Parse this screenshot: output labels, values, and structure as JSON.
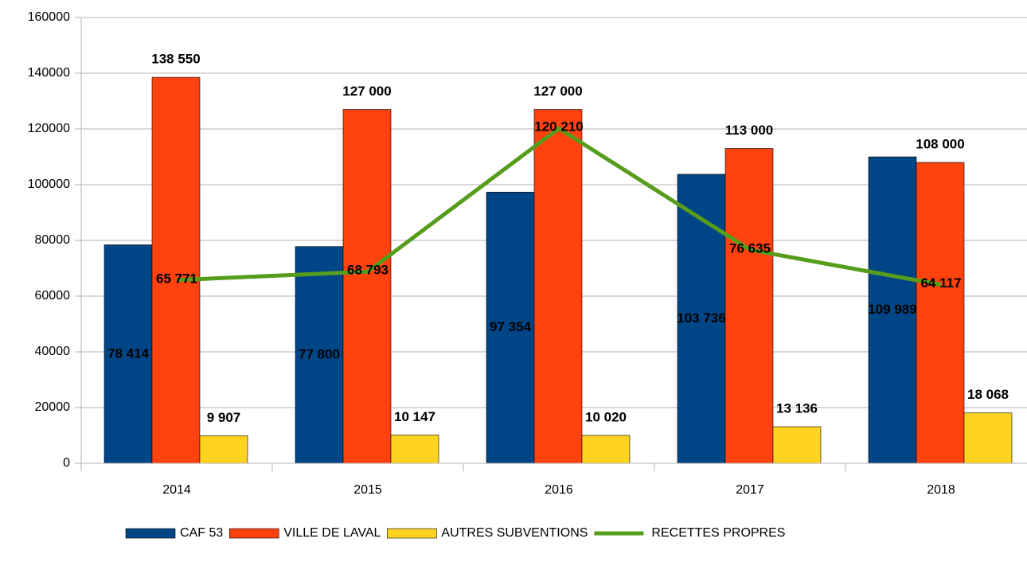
{
  "chart_data": {
    "type": "bar",
    "categories": [
      "2014",
      "2015",
      "2016",
      "2017",
      "2018"
    ],
    "ylim": [
      0,
      160000
    ],
    "yticks": [
      0,
      20000,
      40000,
      60000,
      80000,
      100000,
      120000,
      140000,
      160000
    ],
    "grid": true,
    "legend": "bottom",
    "series": [
      {
        "name": "CAF 53",
        "color": "#004586",
        "type": "bar",
        "values": [
          78414,
          77800,
          97354,
          103736,
          109989
        ],
        "value_labels": [
          "78 414",
          "77 800",
          "97 354",
          "103 736",
          "109 989"
        ]
      },
      {
        "name": "VILLE DE LAVAL",
        "color": "#ff420e",
        "type": "bar",
        "values": [
          138550,
          127000,
          127000,
          113000,
          108000
        ],
        "value_labels": [
          "138 550",
          "127 000",
          "127 000",
          "113 000",
          "108 000"
        ]
      },
      {
        "name": "AUTRES SUBVENTIONS",
        "color": "#ffd320",
        "type": "bar",
        "values": [
          9907,
          10147,
          10020,
          13136,
          18068
        ],
        "value_labels": [
          "9 907",
          "10 147",
          "10 020",
          "13 136",
          "18 068"
        ]
      },
      {
        "name": "RECETTES PROPRES",
        "color": "#579d1c",
        "type": "line",
        "values": [
          65771,
          68793,
          120210,
          76635,
          64117
        ],
        "value_labels": [
          "65 771",
          "68 793",
          "120 210",
          "76 635",
          "64 117"
        ]
      }
    ]
  }
}
